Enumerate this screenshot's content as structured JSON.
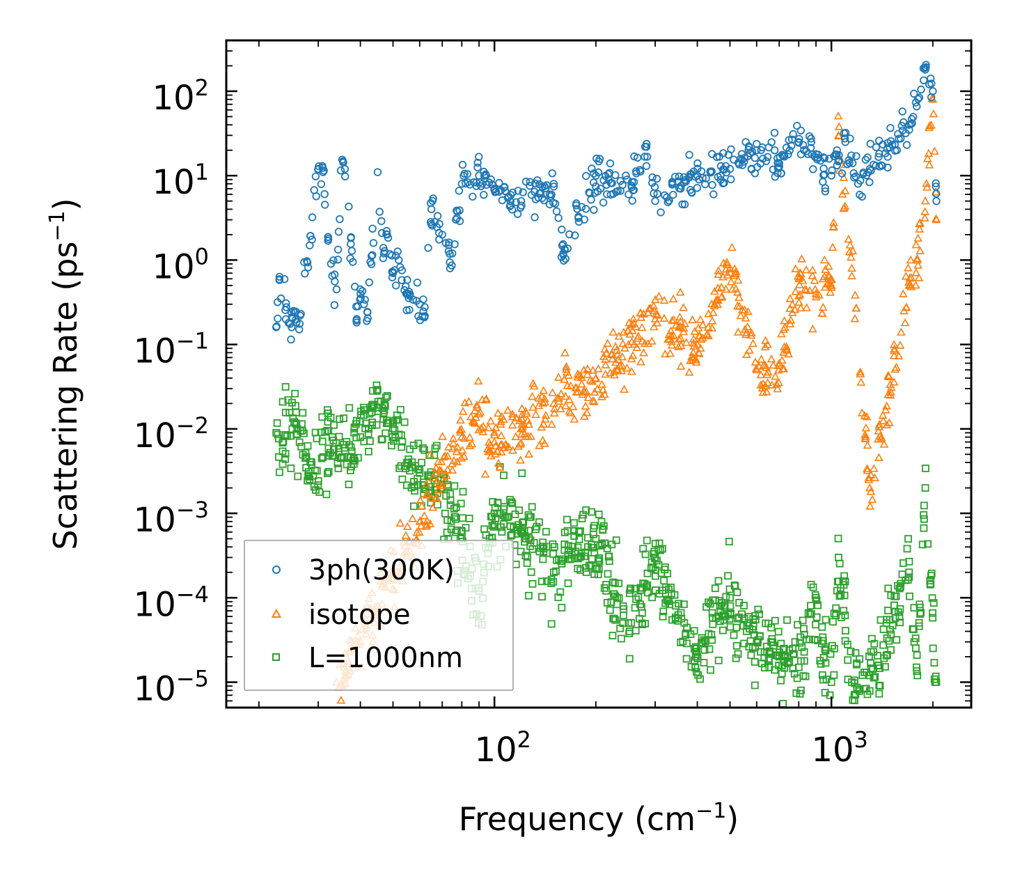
{
  "chart_data": {
    "type": "scatter",
    "title": "",
    "xlabel": "Frequency",
    "xlabel_unit": "cm",
    "xlabel_unit_exp": "−1",
    "ylabel": "Scattering Rate",
    "ylabel_unit": "ps",
    "ylabel_unit_exp": "−1",
    "xscale": "log",
    "yscale": "log",
    "xlim": [
      16,
      2600
    ],
    "ylim": [
      5e-06,
      400
    ],
    "x_ticks": [
      {
        "value": 100,
        "base": "10",
        "exp": "2"
      },
      {
        "value": 1000,
        "base": "10",
        "exp": "3"
      }
    ],
    "y_ticks": [
      {
        "value": 100,
        "base": "10",
        "exp": "2"
      },
      {
        "value": 10,
        "base": "10",
        "exp": "1"
      },
      {
        "value": 1,
        "base": "10",
        "exp": "0"
      },
      {
        "value": 0.1,
        "base": "10",
        "exp": "−1"
      },
      {
        "value": 0.01,
        "base": "10",
        "exp": "−2"
      },
      {
        "value": 0.001,
        "base": "10",
        "exp": "−3"
      },
      {
        "value": 0.0001,
        "base": "10",
        "exp": "−4"
      },
      {
        "value": 1e-05,
        "base": "10",
        "exp": "−5"
      }
    ],
    "legend_position": "lower-left",
    "series": [
      {
        "name": "3ph(300K)",
        "marker": "circle",
        "color": "#1f77b4",
        "sampled_points": [
          [
            22.5,
            0.16
          ],
          [
            23.0,
            0.58
          ],
          [
            24.5,
            0.18
          ],
          [
            25.0,
            0.16
          ],
          [
            25.5,
            0.24
          ],
          [
            26.5,
            0.22
          ],
          [
            30,
            12
          ],
          [
            31,
            11
          ],
          [
            33,
            0.65
          ],
          [
            34,
            0.45
          ],
          [
            35,
            11.5
          ],
          [
            36,
            12
          ],
          [
            38,
            0.95
          ],
          [
            39,
            0.2
          ],
          [
            40,
            0.45
          ],
          [
            41,
            0.3
          ],
          [
            42,
            0.24
          ],
          [
            45,
            11
          ],
          [
            47,
            1.2
          ],
          [
            48,
            2.0
          ],
          [
            50,
            0.7
          ],
          [
            52,
            1.0
          ],
          [
            55,
            0.4
          ],
          [
            60,
            0.3
          ],
          [
            62,
            0.21
          ],
          [
            65,
            4
          ],
          [
            70,
            2
          ],
          [
            75,
            1.2
          ],
          [
            80,
            8
          ],
          [
            90,
            10
          ],
          [
            100,
            7
          ],
          [
            120,
            5
          ],
          [
            150,
            8
          ],
          [
            160,
            1.2
          ],
          [
            200,
            10
          ],
          [
            250,
            6
          ],
          [
            280,
            22
          ],
          [
            300,
            5
          ],
          [
            400,
            10
          ],
          [
            500,
            12
          ],
          [
            600,
            20
          ],
          [
            700,
            14
          ],
          [
            800,
            25
          ],
          [
            900,
            18
          ],
          [
            1000,
            10
          ],
          [
            1100,
            25
          ],
          [
            1200,
            8
          ],
          [
            1300,
            12
          ],
          [
            1700,
            40
          ],
          [
            1900,
            180
          ],
          [
            2000,
            100
          ],
          [
            2050,
            5
          ]
        ]
      },
      {
        "name": "isotope",
        "marker": "triangle",
        "color": "#ff7f0e",
        "sampled_points": [
          [
            34,
            1e-05
          ],
          [
            36,
            1.2e-05
          ],
          [
            40,
            3e-05
          ],
          [
            45,
            8e-05
          ],
          [
            50,
            0.00018
          ],
          [
            55,
            0.00035
          ],
          [
            60,
            0.0008
          ],
          [
            65,
            0.0015
          ],
          [
            70,
            0.003
          ],
          [
            80,
            0.008
          ],
          [
            90,
            0.015
          ],
          [
            100,
            0.007
          ],
          [
            120,
            0.01
          ],
          [
            150,
            0.02
          ],
          [
            200,
            0.04
          ],
          [
            250,
            0.1
          ],
          [
            300,
            0.2
          ],
          [
            400,
            0.1
          ],
          [
            450,
            0.3
          ],
          [
            500,
            0.8
          ],
          [
            600,
            0.05
          ],
          [
            700,
            0.06
          ],
          [
            800,
            0.6
          ],
          [
            900,
            0.4
          ],
          [
            1000,
            0.5
          ],
          [
            1050,
            30
          ],
          [
            1150,
            0.8
          ],
          [
            1300,
            0.002
          ],
          [
            1700,
            0.5
          ],
          [
            1800,
            1.0
          ],
          [
            1900,
            5
          ],
          [
            2000,
            80
          ],
          [
            2050,
            3
          ]
        ]
      },
      {
        "name": "L=1000nm",
        "marker": "square",
        "color": "#2ca02c",
        "sampled_points": [
          [
            22.5,
            0.009
          ],
          [
            24,
            0.0085
          ],
          [
            26,
            0.01
          ],
          [
            28,
            0.0028
          ],
          [
            33,
            0.008
          ],
          [
            35,
            0.0045
          ],
          [
            40,
            0.008
          ],
          [
            45,
            0.018
          ],
          [
            50,
            0.012
          ],
          [
            55,
            0.004
          ],
          [
            60,
            0.003
          ],
          [
            70,
            0.002
          ],
          [
            80,
            0.0005
          ],
          [
            90,
            0.00012
          ],
          [
            100,
            0.001
          ],
          [
            120,
            0.0006
          ],
          [
            150,
            0.0002
          ],
          [
            200,
            0.0005
          ],
          [
            250,
            5e-05
          ],
          [
            300,
            0.0003
          ],
          [
            400,
            2e-05
          ],
          [
            500,
            0.0001
          ],
          [
            600,
            3e-05
          ],
          [
            700,
            2e-05
          ],
          [
            800,
            1.5e-05
          ],
          [
            900,
            0.0001
          ],
          [
            1000,
            1e-05
          ],
          [
            1050,
            0.0003
          ],
          [
            1150,
            1e-05
          ],
          [
            1300,
            1.2e-05
          ],
          [
            1700,
            0.0002
          ],
          [
            1800,
            1.2e-05
          ],
          [
            1900,
            0.002
          ],
          [
            2050,
            1e-05
          ]
        ]
      }
    ]
  }
}
